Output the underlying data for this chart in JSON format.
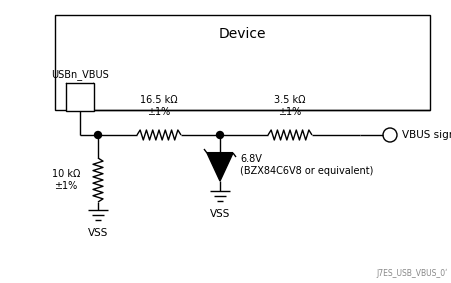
{
  "title": "Device",
  "background_color": "#ffffff",
  "line_color": "#000000",
  "label_usbn_vbus": "USBn_VBUS",
  "label_r1": "16.5 kΩ\n±1%",
  "label_r2": "3.5 kΩ\n±1%",
  "label_r3": "10 kΩ\n±1%",
  "label_zener": "6.8V\n(BZX84C6V8 or equivalent)",
  "label_vbus": "VBUS signal",
  "label_vss1": "VSS",
  "label_vss2": "VSS",
  "label_footnote": "J7ES_USB_VBUS_0ʹ",
  "figsize": [
    4.51,
    2.83
  ],
  "dpi": 100
}
